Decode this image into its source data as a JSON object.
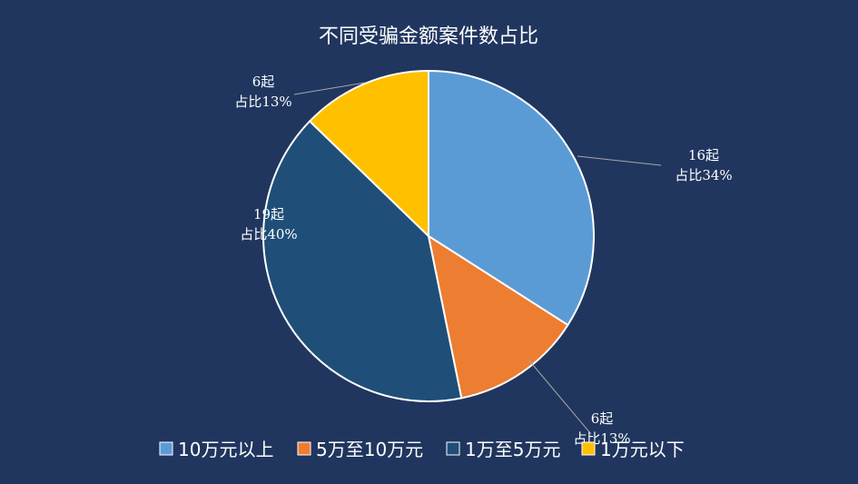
{
  "chart_data": {
    "type": "pie",
    "title": "不同受骗金额案件数占比",
    "start_angle_deg": 0,
    "direction": "clockwise",
    "legend_position": "bottom",
    "slices": [
      {
        "name": "10万元以上",
        "value": 16,
        "label_count": "16起",
        "label_pct": "占比34%",
        "color": "#5b9bd5"
      },
      {
        "name": "5万至10万元",
        "value": 6,
        "label_count": "6起",
        "label_pct": "占比13%",
        "color": "#ed7d31"
      },
      {
        "name": "1万至5万元",
        "value": 19,
        "label_count": "19起",
        "label_pct": "占比40%",
        "color": "#1f4e79"
      },
      {
        "name": "1万元以下",
        "value": 6,
        "label_count": "6起",
        "label_pct": "占比13%",
        "color": "#ffc000"
      }
    ]
  }
}
